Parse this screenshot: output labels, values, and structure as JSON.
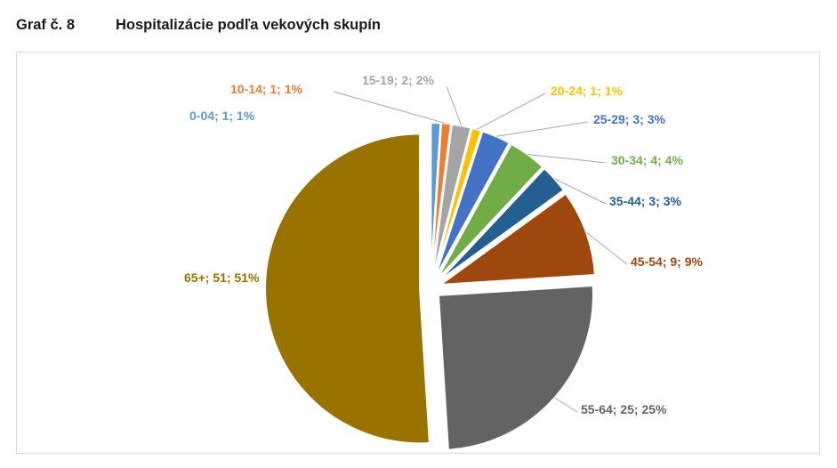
{
  "heading": {
    "number": "Graf č. 8",
    "title": "Hospitalizácie podľa vekových skupín"
  },
  "chart_data": {
    "type": "pie",
    "title": "",
    "categories": [
      "0-04",
      "10-14",
      "15-19",
      "20-24",
      "25-29",
      "30-34",
      "35-44",
      "45-54",
      "55-64",
      "65+"
    ],
    "values": [
      1,
      1,
      2,
      1,
      3,
      4,
      3,
      9,
      25,
      51
    ],
    "percentages": [
      "1%",
      "1%",
      "2%",
      "1%",
      "3%",
      "4%",
      "3%",
      "9%",
      "25%",
      "51%"
    ],
    "data_labels": [
      "0-04; 1; 1%",
      "10-14; 1; 1%",
      "15-19; 2; 2%",
      "20-24; 1; 1%",
      "25-29; 3; 3%",
      "30-34; 4; 4%",
      "35-44; 3; 3%",
      "45-54; 9; 9%",
      "55-64; 25; 25%",
      "65+; 51; 51%"
    ],
    "colors": [
      "#5B9BD5",
      "#ED7D31",
      "#A5A5A5",
      "#FFC000",
      "#4472C4",
      "#70AD47",
      "#255E91",
      "#9E480E",
      "#636363",
      "#997300"
    ],
    "exploded": true,
    "legend": "none"
  }
}
